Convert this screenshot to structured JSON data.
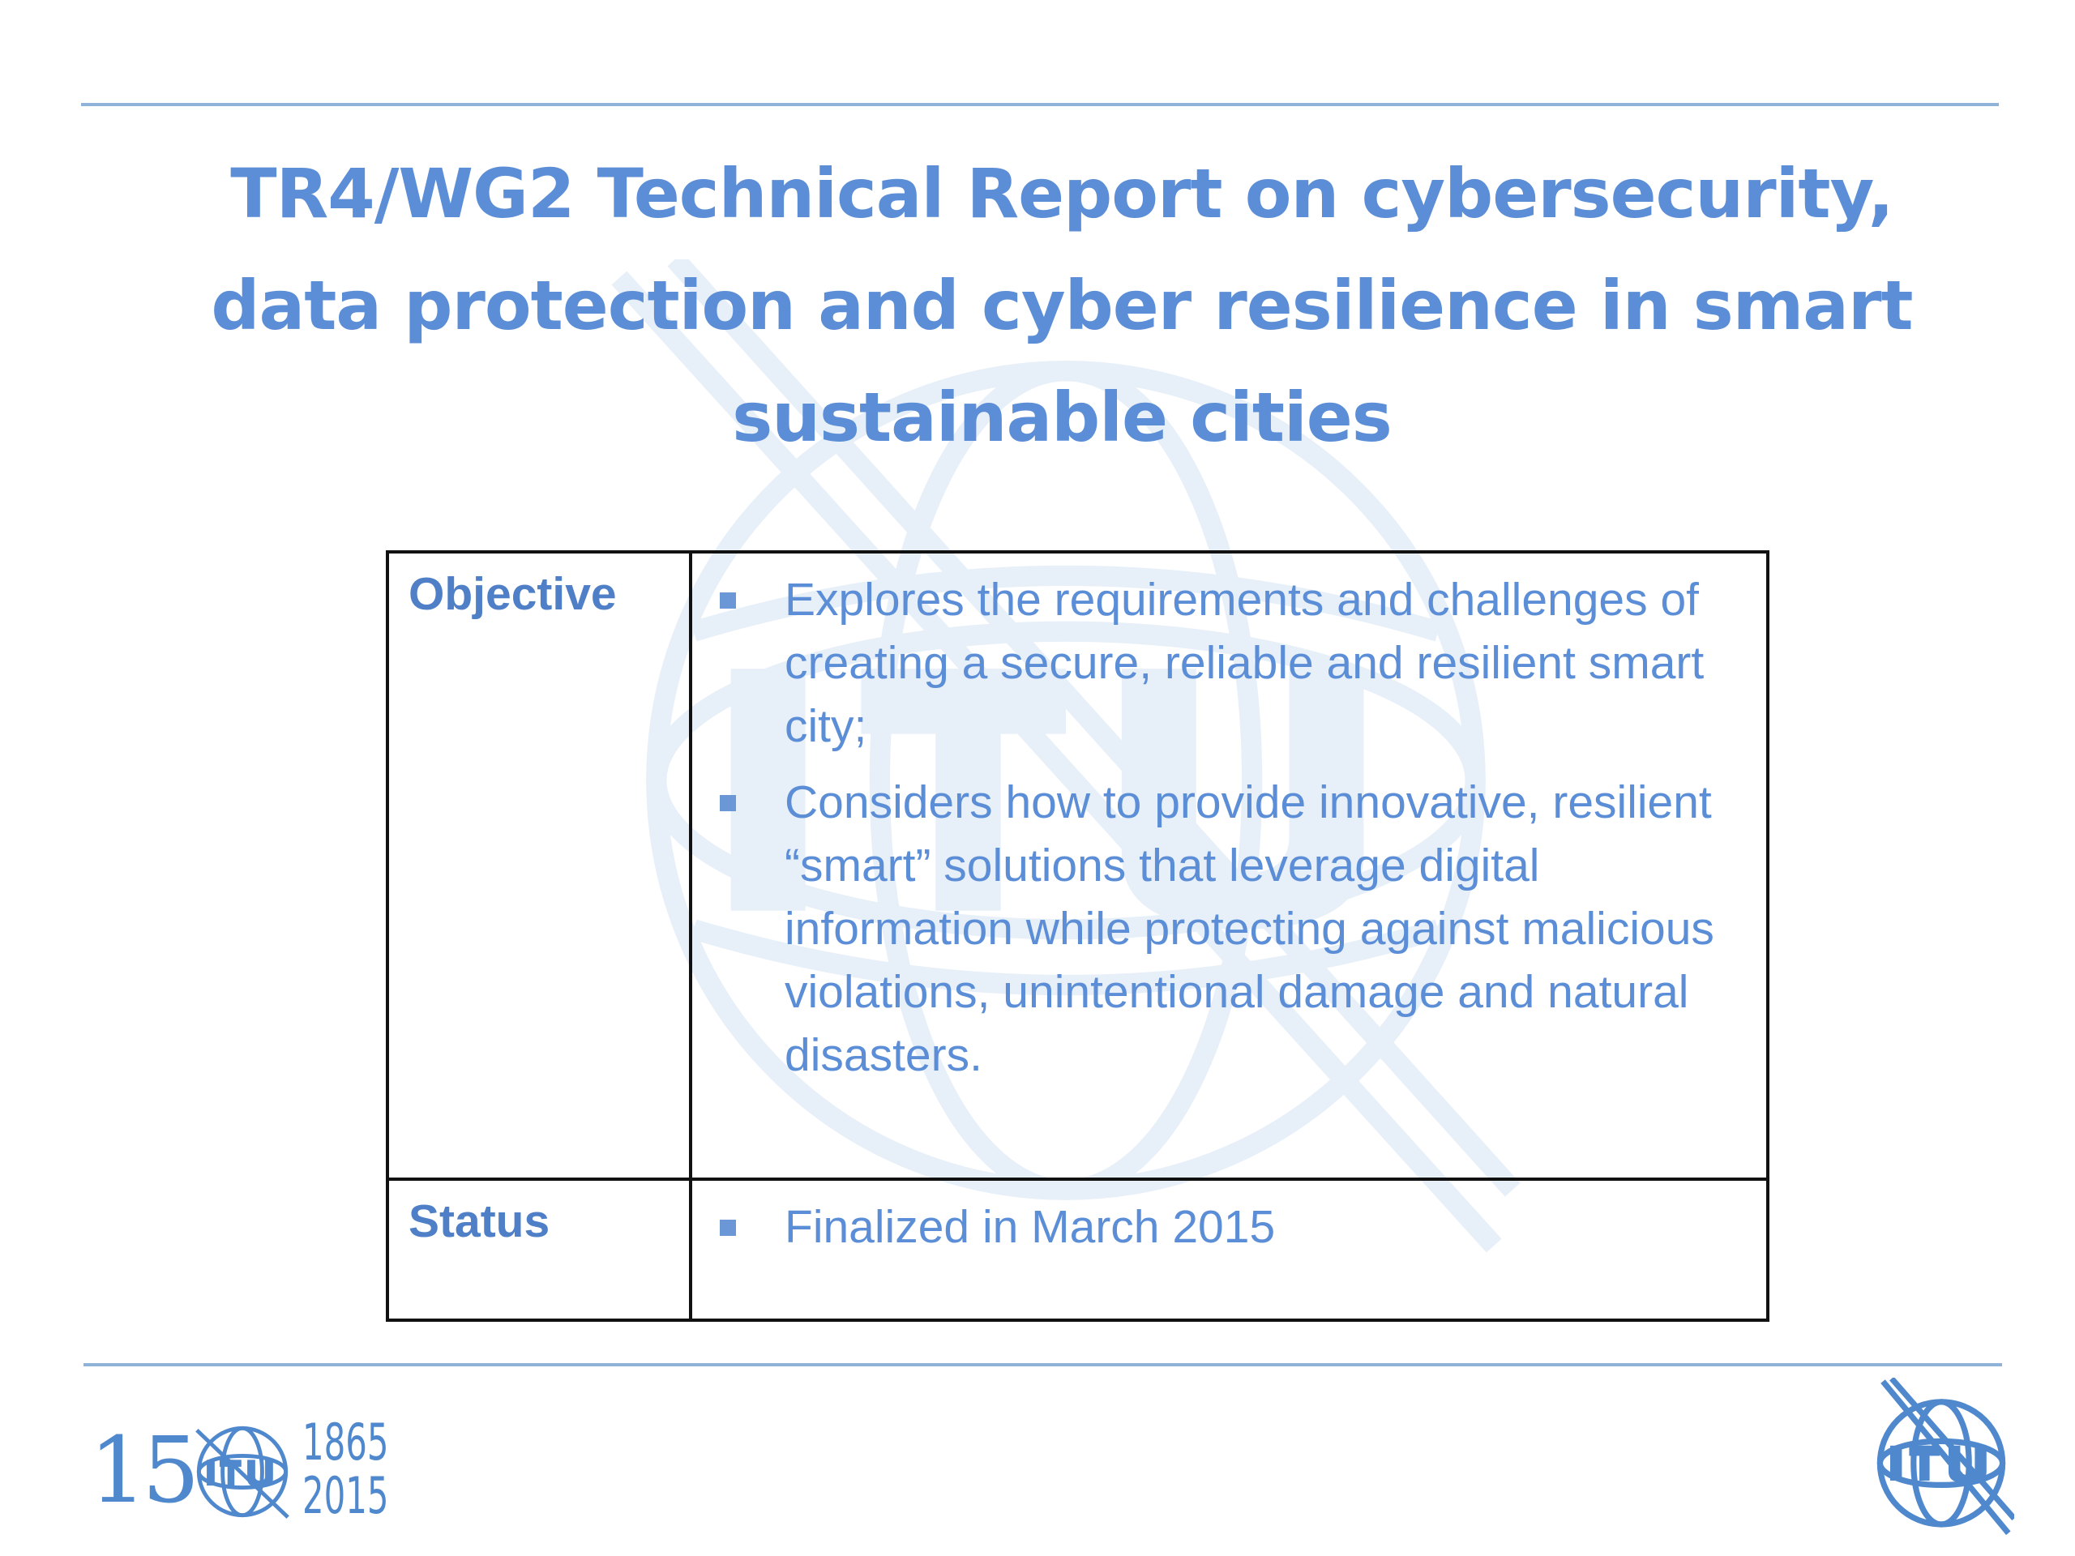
{
  "slide": {
    "title": "TR4/WG2 Technical Report on cybersecurity, data protection and cyber resilience in smart sustainable cities"
  },
  "table": {
    "rows": [
      {
        "label": "Objective",
        "bullets": [
          "Explores the requirements and challenges of creating a secure, reliable and resilient smart city;",
          "Considers how to provide innovative, resilient “smart” solutions that leverage digital information while protecting against malicious violations, unintentional damage and natural disasters."
        ]
      },
      {
        "label": "Status",
        "bullets": [
          "Finalized in March 2015"
        ]
      }
    ]
  },
  "footer": {
    "anniversary_number": "150",
    "anniversary_years": [
      "1865",
      "2015"
    ],
    "logo_text": "ITU"
  },
  "colors": {
    "accent": "#5b8ed6",
    "rule": "#8fb2d8",
    "border": "#111111"
  }
}
